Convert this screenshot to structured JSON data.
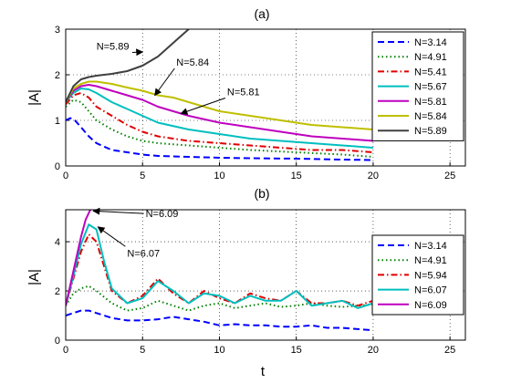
{
  "chart_data": [
    {
      "panel": "a",
      "type": "line",
      "title": "(a)",
      "xlabel": "",
      "ylabel": "|A|",
      "xlim": [
        0,
        26
      ],
      "ylim": [
        0,
        3
      ],
      "xticks": [
        0,
        5,
        10,
        15,
        20,
        25
      ],
      "yticks": [
        0,
        1,
        2,
        3
      ],
      "grid": true,
      "legend_position": "top-right",
      "series": [
        {
          "name": "N=3.14",
          "color": "#0000ff",
          "dash": "dashed",
          "x": [
            0,
            0.3,
            0.6,
            1,
            1.5,
            2,
            3,
            4,
            5,
            6,
            8,
            10,
            12,
            15,
            18,
            20
          ],
          "y": [
            1.0,
            1.05,
            1.0,
            0.85,
            0.65,
            0.5,
            0.35,
            0.3,
            0.25,
            0.22,
            0.2,
            0.18,
            0.17,
            0.16,
            0.14,
            0.13
          ]
        },
        {
          "name": "N=4.91",
          "color": "#008000",
          "dash": "dotted",
          "x": [
            0,
            0.5,
            1,
            1.5,
            2,
            3,
            4,
            5,
            6,
            8,
            10,
            12,
            15,
            18,
            20
          ],
          "y": [
            1.3,
            1.45,
            1.4,
            1.2,
            1.0,
            0.8,
            0.65,
            0.55,
            0.5,
            0.45,
            0.4,
            0.35,
            0.3,
            0.25,
            0.2
          ]
        },
        {
          "name": "N=5.41",
          "color": "#e00000",
          "dash": "dashdot",
          "x": [
            0,
            0.5,
            1,
            1.5,
            2,
            3,
            4,
            5,
            6,
            7,
            8,
            10,
            12,
            14,
            16,
            18,
            20
          ],
          "y": [
            1.35,
            1.55,
            1.6,
            1.5,
            1.3,
            1.1,
            0.9,
            0.75,
            0.65,
            0.6,
            0.55,
            0.5,
            0.45,
            0.4,
            0.35,
            0.35,
            0.3
          ]
        },
        {
          "name": "N=5.67",
          "color": "#00bfbf",
          "dash": "solid",
          "x": [
            0,
            0.5,
            1,
            1.5,
            2,
            3,
            4,
            5,
            6,
            8,
            10,
            12,
            14,
            16,
            18,
            20
          ],
          "y": [
            1.4,
            1.6,
            1.7,
            1.68,
            1.6,
            1.4,
            1.25,
            1.1,
            0.95,
            0.8,
            0.7,
            0.6,
            0.55,
            0.5,
            0.45,
            0.4
          ]
        },
        {
          "name": "N=5.81",
          "color": "#bf00bf",
          "dash": "solid",
          "x": [
            0,
            0.5,
            1,
            1.5,
            2,
            3,
            4,
            5,
            6,
            7,
            8,
            10,
            12,
            14,
            16,
            18,
            20
          ],
          "y": [
            1.4,
            1.65,
            1.75,
            1.78,
            1.75,
            1.65,
            1.55,
            1.45,
            1.3,
            1.2,
            1.1,
            0.95,
            0.85,
            0.75,
            0.65,
            0.6,
            0.55
          ]
        },
        {
          "name": "N=5.84",
          "color": "#bfbf00",
          "dash": "solid",
          "x": [
            0,
            0.5,
            1,
            1.5,
            2,
            3,
            4,
            5,
            6,
            7,
            8,
            9,
            10,
            12,
            14,
            16,
            18,
            20
          ],
          "y": [
            1.4,
            1.7,
            1.8,
            1.85,
            1.85,
            1.8,
            1.72,
            1.65,
            1.55,
            1.5,
            1.4,
            1.3,
            1.2,
            1.1,
            1.0,
            0.9,
            0.85,
            0.8
          ]
        },
        {
          "name": "N=5.89",
          "color": "#404040",
          "dash": "solid",
          "x": [
            0,
            0.5,
            1,
            1.5,
            2,
            3,
            4,
            5,
            6,
            6.5,
            7,
            7.5,
            8
          ],
          "y": [
            1.4,
            1.75,
            1.9,
            1.95,
            1.98,
            2.02,
            2.08,
            2.2,
            2.4,
            2.55,
            2.7,
            2.85,
            3.0
          ]
        }
      ],
      "annotations": [
        {
          "text": "N=5.89",
          "x": 2.0,
          "y": 2.55,
          "arrow_to": [
            5.0,
            2.5
          ]
        },
        {
          "text": "N=5.84",
          "x": 7.2,
          "y": 2.2,
          "arrow_to": [
            5.8,
            1.55
          ]
        },
        {
          "text": "N=5.81",
          "x": 10.5,
          "y": 1.55,
          "arrow_to": [
            7.5,
            1.15
          ]
        }
      ]
    },
    {
      "panel": "b",
      "type": "line",
      "title": "(b)",
      "xlabel": "t",
      "ylabel": "|A|",
      "xlim": [
        0,
        26
      ],
      "ylim": [
        0,
        5.3
      ],
      "xticks": [
        0,
        5,
        10,
        15,
        20,
        25
      ],
      "yticks": [
        0,
        2,
        4
      ],
      "grid": true,
      "legend_position": "top-right",
      "series": [
        {
          "name": "N=3.14",
          "color": "#0000ff",
          "dash": "dashed",
          "x": [
            0,
            0.5,
            1,
            1.5,
            2,
            3,
            4,
            5,
            6,
            7,
            8,
            9,
            10,
            11,
            12,
            13,
            14,
            15,
            16,
            17,
            18,
            19,
            20
          ],
          "y": [
            1.0,
            1.1,
            1.2,
            1.2,
            1.1,
            0.9,
            0.8,
            0.8,
            0.85,
            0.95,
            0.85,
            0.75,
            0.6,
            0.65,
            0.6,
            0.6,
            0.55,
            0.55,
            0.6,
            0.5,
            0.5,
            0.45,
            0.4
          ]
        },
        {
          "name": "N=4.91",
          "color": "#008000",
          "dash": "dotted",
          "x": [
            0,
            0.5,
            1,
            1.5,
            2,
            3,
            4,
            5,
            6,
            7,
            8,
            9,
            10,
            11,
            12,
            13,
            14,
            15,
            16,
            17,
            18,
            19,
            20
          ],
          "y": [
            1.4,
            1.9,
            2.1,
            2.2,
            2.0,
            1.5,
            1.2,
            1.3,
            1.6,
            1.4,
            1.2,
            1.4,
            1.5,
            1.3,
            1.4,
            1.5,
            1.35,
            1.4,
            1.5,
            1.4,
            1.35,
            1.4,
            1.45
          ]
        },
        {
          "name": "N=5.94",
          "color": "#e00000",
          "dash": "dashdot",
          "x": [
            0,
            0.5,
            1,
            1.5,
            2,
            2.5,
            3,
            4,
            5,
            6,
            7,
            8,
            9,
            10,
            11,
            12,
            13,
            14,
            15,
            16,
            17,
            18,
            19,
            20
          ],
          "y": [
            1.4,
            2.5,
            3.6,
            4.3,
            4.0,
            3.0,
            2.0,
            1.5,
            1.8,
            2.5,
            1.9,
            1.5,
            2.0,
            1.7,
            1.5,
            1.9,
            1.7,
            1.6,
            2.0,
            1.5,
            1.5,
            1.6,
            1.4,
            1.6
          ]
        },
        {
          "name": "N=6.07",
          "color": "#00bfbf",
          "dash": "solid",
          "x": [
            0,
            0.5,
            1,
            1.5,
            2,
            2.5,
            3,
            4,
            5,
            6,
            7,
            8,
            9,
            10,
            11,
            12,
            13,
            14,
            15,
            16,
            17,
            18,
            19,
            20
          ],
          "y": [
            1.4,
            2.6,
            3.9,
            4.7,
            4.5,
            3.2,
            2.1,
            1.5,
            1.7,
            2.4,
            2.0,
            1.5,
            1.9,
            1.8,
            1.5,
            1.8,
            1.6,
            1.6,
            2.0,
            1.4,
            1.5,
            1.6,
            1.3,
            1.5
          ]
        },
        {
          "name": "N=6.09",
          "color": "#bf00bf",
          "dash": "solid",
          "x": [
            0,
            0.5,
            1,
            1.3,
            1.6
          ],
          "y": [
            1.4,
            2.8,
            4.2,
            4.9,
            5.3
          ]
        }
      ],
      "annotations": [
        {
          "text": "N=6.09",
          "x": 5.2,
          "y": 5.0,
          "arrow_to": [
            1.8,
            5.25
          ]
        },
        {
          "text": "N=6.07",
          "x": 4.0,
          "y": 3.4,
          "arrow_to": [
            2.1,
            4.6
          ]
        }
      ]
    }
  ]
}
